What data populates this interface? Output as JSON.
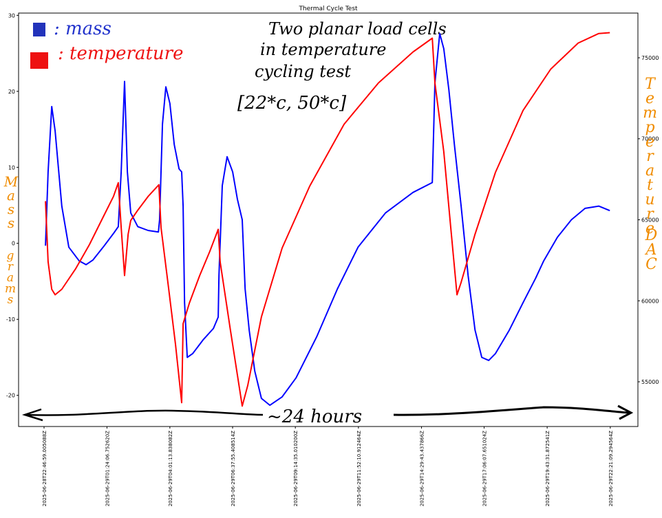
{
  "chart_data": {
    "type": "line",
    "title": "Thermal Cycle Test",
    "xlim": [
      -1.06,
      24.72
    ],
    "xticks": [
      {
        "value": 0,
        "label": "2025-06-28T22:46:59.005088Z"
      },
      {
        "value": 2.6188,
        "label": "2025-06-29T01:24:06.752620Z"
      },
      {
        "value": 5.2375,
        "label": "2025-06-29T04:01:13.838082Z"
      },
      {
        "value": 7.849,
        "label": "2025-06-29T06:37:55.408514Z"
      },
      {
        "value": 10.46,
        "label": "2025-06-29T09:14:35.010200Z"
      },
      {
        "value": 13.0866,
        "label": "2025-06-29T11:52:10.912464Z"
      },
      {
        "value": 15.7123,
        "label": "2025-06-29T14:29:43.437866Z"
      },
      {
        "value": 18.3191,
        "label": "2025-06-29T17:06:07.651024Z"
      },
      {
        "value": 20.9425,
        "label": "2025-06-29T19:43:31.872541Z"
      },
      {
        "value": 23.5695,
        "label": "2025-06-29T22:21:09.294564Z"
      }
    ],
    "ylim": [
      -24.1,
      30.3
    ],
    "yticks": [
      -20,
      -10,
      0,
      10,
      20,
      30
    ],
    "y2lim": [
      52240,
      77760
    ],
    "y2ticks": [
      55000,
      60000,
      65000,
      70000,
      75000
    ],
    "series": [
      {
        "name": ": mass",
        "color": "#0000ff",
        "x": [
          0.06,
          0.17,
          0.32,
          0.46,
          0.74,
          1.03,
          1.46,
          1.75,
          2.03,
          2.46,
          2.89,
          3.09,
          3.21,
          3.35,
          3.47,
          3.61,
          3.9,
          4.33,
          4.76,
          4.81,
          4.93,
          5.07,
          5.24,
          5.42,
          5.62,
          5.73,
          5.79,
          5.85,
          5.96,
          6.19,
          6.62,
          7.05,
          7.25,
          7.28,
          7.42,
          7.62,
          7.85,
          8.05,
          8.25,
          8.37,
          8.54,
          8.77,
          9.05,
          9.4,
          9.91,
          10.49,
          11.35,
          12.21,
          13.07,
          14.21,
          15.36,
          16.16,
          16.27,
          16.47,
          16.64,
          16.85,
          17.08,
          17.36,
          17.65,
          17.94,
          18.22,
          18.51,
          18.79,
          19.37,
          19.94,
          20.46,
          20.8,
          21.37,
          21.95,
          22.52,
          23.09,
          23.55
        ],
        "values": [
          -0.3,
          9.4,
          18.0,
          14.8,
          4.9,
          -0.5,
          -2.3,
          -2.8,
          -2.2,
          -0.5,
          1.3,
          2.2,
          9.4,
          21.3,
          9.4,
          4.0,
          2.2,
          1.7,
          1.5,
          3.1,
          15.7,
          20.6,
          18.4,
          13.0,
          9.8,
          9.4,
          4.9,
          -7.8,
          -15.0,
          -14.5,
          -12.7,
          -11.2,
          -9.7,
          -4.2,
          7.6,
          11.4,
          9.4,
          5.8,
          3.1,
          -6.0,
          -11.4,
          -16.8,
          -20.4,
          -21.3,
          -20.2,
          -17.7,
          -12.3,
          -6.0,
          -0.5,
          4.0,
          6.7,
          8.0,
          21.1,
          27.6,
          25.6,
          20.2,
          13.0,
          4.9,
          -4.2,
          -11.4,
          -15.0,
          -15.4,
          -14.5,
          -11.4,
          -7.8,
          -4.6,
          -2.3,
          0.8,
          3.1,
          4.6,
          4.9,
          4.3
        ]
      },
      {
        "name": ": temperature",
        "color": "#ff0000",
        "axis": "y2",
        "x": [
          0.06,
          0.17,
          0.32,
          0.46,
          0.74,
          1.32,
          1.89,
          2.46,
          2.89,
          3.09,
          3.21,
          3.35,
          3.5,
          3.61,
          3.9,
          4.33,
          4.78,
          4.87,
          5.19,
          5.47,
          5.73,
          5.79,
          6.05,
          6.48,
          6.9,
          7.25,
          7.33,
          7.76,
          8.25,
          8.48,
          9.05,
          9.91,
          11.06,
          12.49,
          13.92,
          15.36,
          16.16,
          16.27,
          16.64,
          16.93,
          17.19,
          17.36,
          17.94,
          18.79,
          19.94,
          21.09,
          22.23,
          23.09,
          23.55
        ],
        "values": [
          66150,
          62410,
          60710,
          60370,
          60710,
          61990,
          63470,
          65170,
          66440,
          67290,
          64530,
          61560,
          64110,
          64960,
          65590,
          66440,
          67160,
          64530,
          60710,
          57320,
          53710,
          58590,
          59860,
          61560,
          63050,
          64410,
          62410,
          58170,
          53500,
          54770,
          59010,
          63260,
          67080,
          70900,
          73450,
          75360,
          76210,
          73450,
          69200,
          64530,
          60370,
          61140,
          64110,
          67930,
          71750,
          74300,
          75910,
          76500,
          76550
        ]
      }
    ],
    "annotations": [
      "Two planar load cells",
      "in temperature",
      "cycling test",
      "[22*c, 50*c]",
      "~24 hours"
    ],
    "ylabel": "Mass",
    "ylabel2": "grams",
    "y2label": "Temperature",
    "y2label2": "DAC"
  }
}
